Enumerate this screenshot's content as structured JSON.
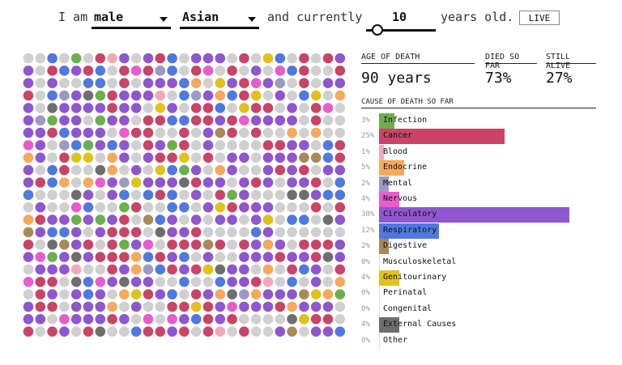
{
  "header": {
    "prefix": "I am",
    "sex": "male",
    "race": "Asian",
    "middle": "and currently",
    "age": "10",
    "age_min": 0,
    "age_max": 85,
    "suffix": "years old.",
    "live_label": "LIVE"
  },
  "stats": {
    "age_of_death_label": "AGE OF DEATH",
    "age_of_death_value": "90 years",
    "died_label": "DIED SO FAR",
    "died_value": "73%",
    "alive_label": "STILL ALIVE",
    "alive_value": "27%"
  },
  "causes_title": "CAUSE OF DEATH SO FAR",
  "causes": [
    {
      "name": "Infection",
      "pct": "3%",
      "value": 3,
      "color": "#6ab04c"
    },
    {
      "name": "Cancer",
      "pct": "25%",
      "value": 25,
      "color": "#c94466"
    },
    {
      "name": "Blood",
      "pct": "1%",
      "value": 1,
      "color": "#f2a8b8"
    },
    {
      "name": "Endocrine",
      "pct": "5%",
      "value": 5,
      "color": "#f6a85c"
    },
    {
      "name": "Mental",
      "pct": "2%",
      "value": 2,
      "color": "#9a9ac2"
    },
    {
      "name": "Nervous",
      "pct": "4%",
      "value": 4,
      "color": "#e85ccc"
    },
    {
      "name": "Circulatory",
      "pct": "38%",
      "value": 38,
      "color": "#8e56cf"
    },
    {
      "name": "Respiratory",
      "pct": "12%",
      "value": 12,
      "color": "#4f79e0"
    },
    {
      "name": "Digestive",
      "pct": "2%",
      "value": 2,
      "color": "#a88a58"
    },
    {
      "name": "Musculoskeletal",
      "pct": "0%",
      "value": 0,
      "color": "#8a8a8a"
    },
    {
      "name": "Genitourinary",
      "pct": "4%",
      "value": 4,
      "color": "#e0c21a"
    },
    {
      "name": "Perinatal",
      "pct": "0%",
      "value": 0,
      "color": "#999999"
    },
    {
      "name": "Congenital",
      "pct": "0%",
      "value": 0,
      "color": "#999999"
    },
    {
      "name": "External Causes",
      "pct": "4%",
      "value": 4,
      "color": "#6e6e6e"
    },
    {
      "name": "Other",
      "pct": "0%",
      "value": 0,
      "color": "#cccccc"
    }
  ],
  "alive_dot_color": "#d0d0d0"
}
